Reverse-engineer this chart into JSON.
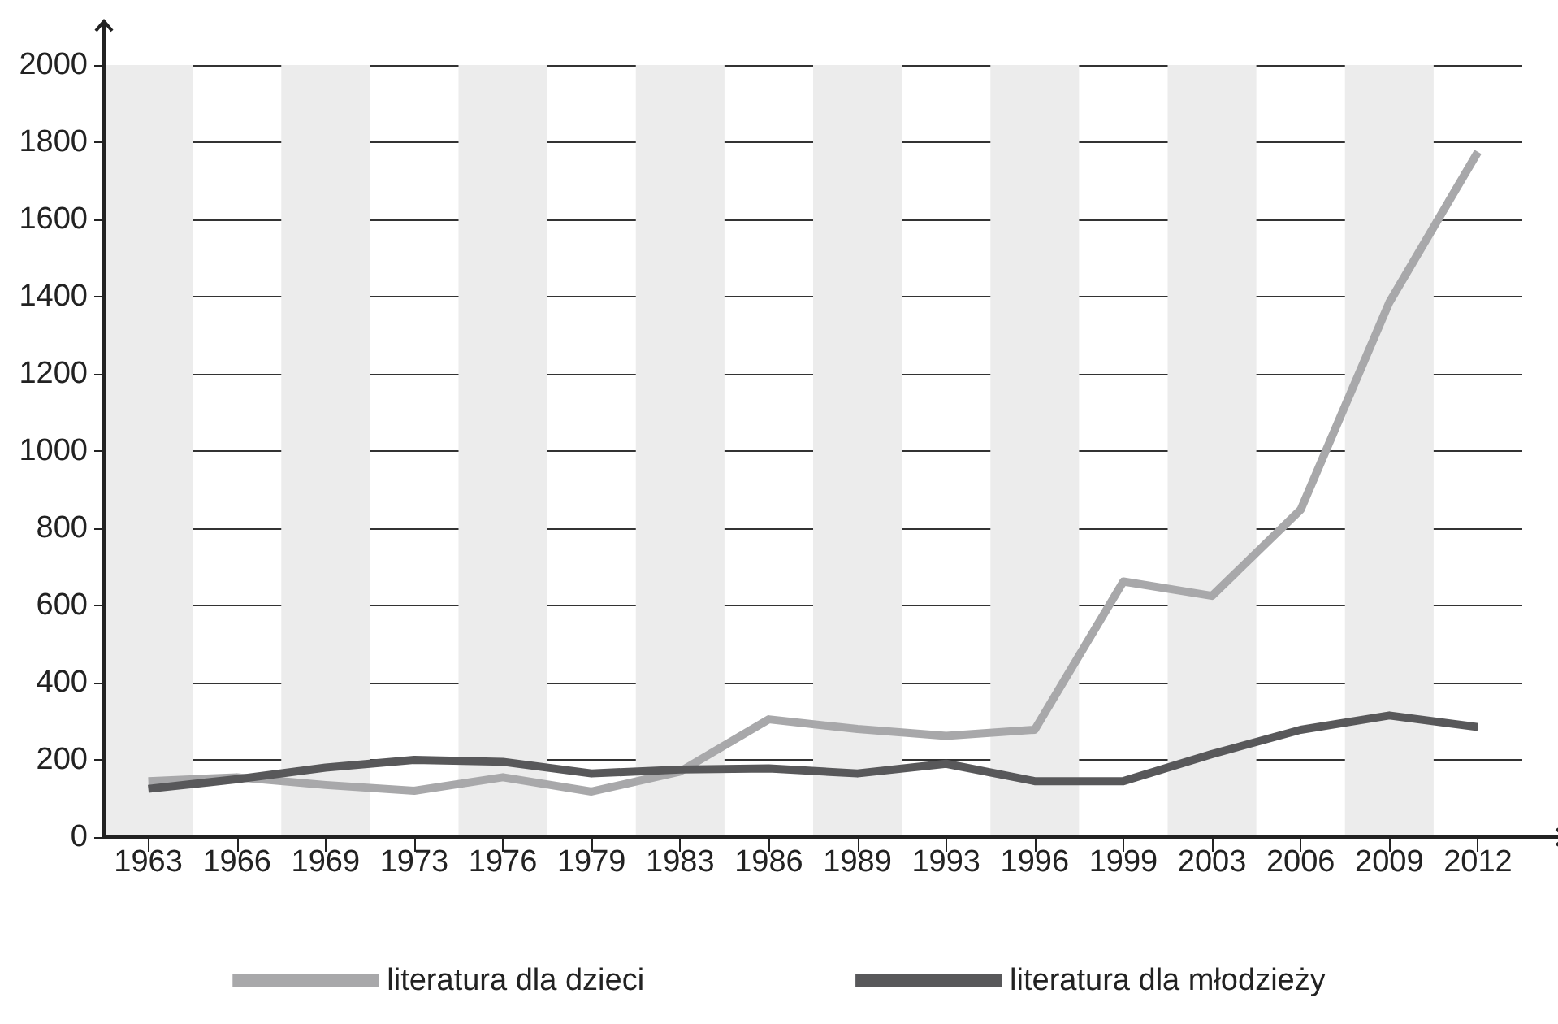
{
  "chart_data": {
    "type": "line",
    "categories": [
      "1963",
      "1966",
      "1969",
      "1973",
      "1976",
      "1979",
      "1983",
      "1986",
      "1989",
      "1993",
      "1996",
      "1999",
      "2003",
      "2006",
      "2009",
      "2012"
    ],
    "series": [
      {
        "name": "literatura dla dzieci",
        "color": "#a8a8aa",
        "values": [
          145,
          155,
          135,
          120,
          155,
          118,
          170,
          305,
          280,
          262,
          278,
          662,
          625,
          848,
          1385,
          1775
        ]
      },
      {
        "name": "literatura dla młodzieży",
        "color": "#58585a",
        "values": [
          125,
          150,
          180,
          200,
          195,
          165,
          175,
          178,
          165,
          190,
          145,
          145,
          215,
          278,
          315,
          285
        ]
      }
    ],
    "ylim": [
      0,
      2000
    ],
    "yticks": [
      0,
      200,
      400,
      600,
      800,
      1000,
      1200,
      1400,
      1600,
      1800,
      2000
    ],
    "grid": "y",
    "legend": "bottom",
    "marker": "none",
    "line_style": "solid"
  }
}
